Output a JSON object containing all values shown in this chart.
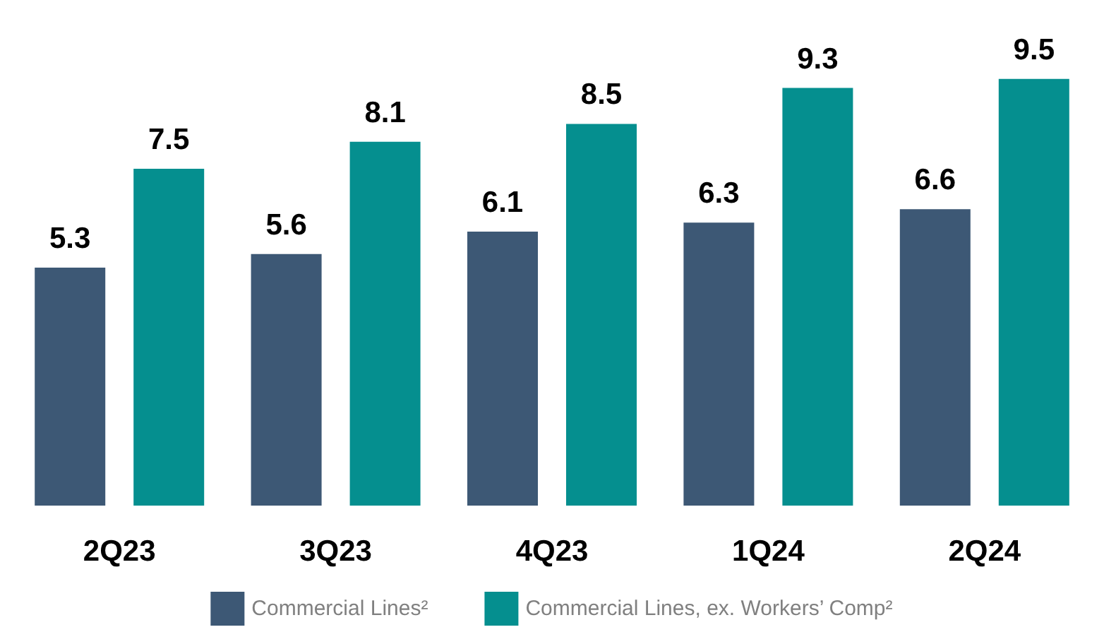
{
  "chart_data": {
    "type": "bar",
    "categories": [
      "2Q23",
      "3Q23",
      "4Q23",
      "1Q24",
      "2Q24"
    ],
    "series": [
      {
        "name": "Commercial Lines²",
        "color": "#3d5875",
        "values": [
          5.3,
          5.6,
          6.1,
          6.3,
          6.6
        ]
      },
      {
        "name": "Commercial Lines, ex. Workers’ Comp²",
        "color": "#058f8f",
        "values": [
          7.5,
          8.1,
          8.5,
          9.3,
          9.5
        ]
      }
    ],
    "data_labels": true,
    "legend": "bottom",
    "grid": false,
    "tick_labels": "x"
  }
}
